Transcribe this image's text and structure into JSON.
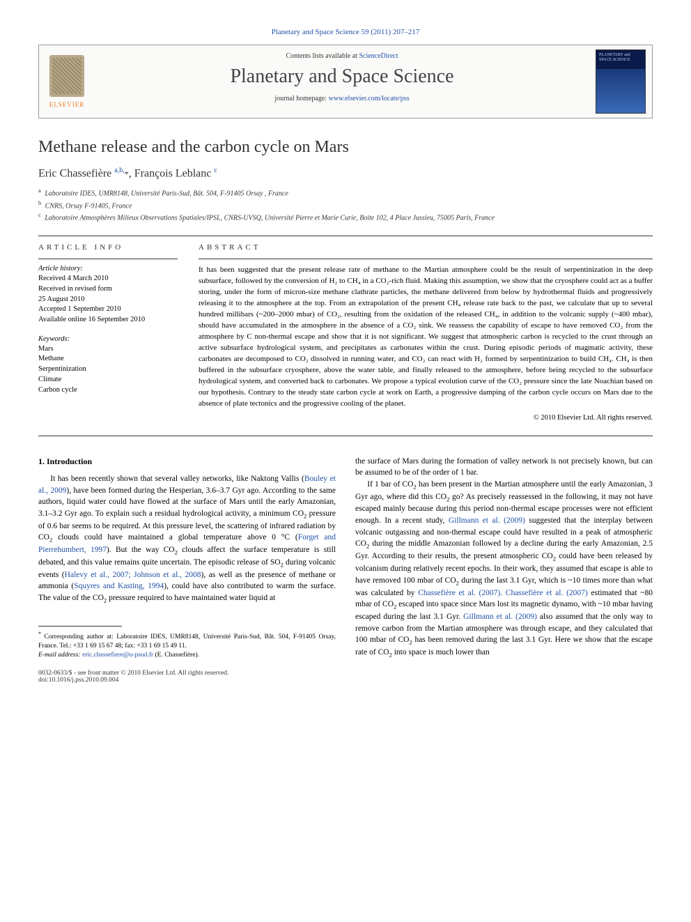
{
  "journal_ref": "Planetary and Space Science 59 (2011) 207–217",
  "header": {
    "contents_text": "Contents lists available at ",
    "contents_link": "ScienceDirect",
    "journal_title": "Planetary and Space Science",
    "homepage_text": "journal homepage: ",
    "homepage_link": "www.elsevier.com/locate/pss",
    "publisher": "ELSEVIER",
    "cover_text": "PLANETARY and SPACE SCIENCE"
  },
  "article": {
    "title": "Methane release and the carbon cycle on Mars",
    "authors_html": "Eric Chassefière <sup>a,b,</sup><span class='star'>*</span>, François Leblanc <sup>c</sup>",
    "affiliations": [
      {
        "sup": "a",
        "text": "Laboratoire IDES, UMR8148, Université Paris-Sud, Bât. 504, F-91405 Orsay , France"
      },
      {
        "sup": "b",
        "text": "CNRS, Orsay F-91405, France"
      },
      {
        "sup": "c",
        "text": "Laboratoire Atmosphères Milieux Observations Spatiales/IPSL, CNRS-UVSQ, Université Pierre et Marie Curie, Boite 102, 4 Place Jussieu, 75005 Paris, France"
      }
    ]
  },
  "info": {
    "article_info_heading": "ARTICLE INFO",
    "abstract_heading": "ABSTRACT",
    "history_label": "Article history:",
    "history": [
      "Received 4 March 2010",
      "Received in revised form",
      "25 August 2010",
      "Accepted 1 September 2010",
      "Available online 16 September 2010"
    ],
    "keywords_label": "Keywords:",
    "keywords": [
      "Mars",
      "Methane",
      "Serpentinization",
      "Climate",
      "Carbon cycle"
    ]
  },
  "abstract": "It has been suggested that the present release rate of methane to the Martian atmosphere could be the result of serpentinization in the deep subsurface, followed by the conversion of H₂ to CH₄ in a CO₂-rich fluid. Making this assumption, we show that the cryosphere could act as a buffer storing, under the form of micron-size methane clathrate particles, the methane delivered from below by hydrothermal fluids and progressively releasing it to the atmosphere at the top. From an extrapolation of the present CH₄ release rate back to the past, we calculate that up to several hundred millibars (~200–2000 mbar) of CO₂, resulting from the oxidation of the released CH₄, in addition to the volcanic supply (~400 mbar), should have accumulated in the atmosphere in the absence of a CO₂ sink. We reassess the capability of escape to have removed CO₂ from the atmosphere by C non-thermal escape and show that it is not significant. We suggest that atmospheric carbon is recycled to the crust through an active subsurface hydrological system, and precipitates as carbonates within the crust. During episodic periods of magmatic activity, these carbonates are decomposed to CO₂ dissolved in running water, and CO₂ can react with H₂ formed by serpentinization to build CH₄. CH₄ is then buffered in the subsurface cryosphere, above the water table, and finally released to the atmosphere, before being recycled to the subsurface hydrological system, and converted back to carbonates. We propose a typical evolution curve of the CO₂ pressure since the late Noachian based on our hypothesis. Contrary to the steady state carbon cycle at work on Earth, a progressive damping of the carbon cycle occurs on Mars due to the absence of plate tectonics and the progressive cooling of the planet.",
  "copyright": "© 2010 Elsevier Ltd. All rights reserved.",
  "body": {
    "section_heading": "1.  Introduction",
    "p1": "It has been recently shown that several valley networks, like Naktong Vallis (<span class='cite'>Bouley et al., 2009</span>), have been formed during the Hesperian, 3.6–3.7 Gyr ago. According to the same authors, liquid water could have flowed at the surface of Mars until the early Amazonian, 3.1–3.2 Gyr ago. To explain such a residual hydrological activity, a minimum CO<sub>2</sub> pressure of 0.6 bar seems to be required. At this pressure level, the scattering of infrared radiation by CO<sub>2</sub> clouds could have maintained a global temperature above 0 °C (<span class='cite'>Forget and Pierrehumbert, 1997</span>). But the way CO<sub>2</sub> clouds affect the surface temperature is still debated, and this value remains quite uncertain. The episodic release of SO<sub>2</sub> during volcanic events (<span class='cite'>Halevy et al., 2007; Johnson et al., 2008</span>), as well as the presence of methane or ammonia (<span class='cite'>Squyres and Kasting, 1994</span>), could have also contributed to warm the surface. The value of the CO<sub>2</sub> pressure required to have maintained water liquid at",
    "p2": "the surface of Mars during the formation of valley network is not precisely known, but can be assumed to be of the order of 1 bar.",
    "p3": "If 1 bar of CO<sub>2</sub> has been present in the Martian atmosphere until the early Amazonian, 3 Gyr ago, where did this CO<sub>2</sub> go? As precisely reassessed in the following, it may not have escaped mainly because during this period non-thermal escape processes were not efficient enough. In a recent study, <span class='cite'>Gillmann et al. (2009)</span> suggested that the interplay between volcanic outgassing and non-thermal escape could have resulted in a peak of atmospheric CO<sub>2</sub> during the middle Amazonian followed by a decline during the early Amazonian, 2.5 Gyr. According to their results, the present atmospheric CO<sub>2</sub> could have been released by volcanism during relatively recent epochs. In their work, they assumed that escape is able to have removed 100 mbar of CO<sub>2</sub> during the last 3.1 Gyr, which is ~10 times more than what was calculated by <span class='cite'>Chassefière et al. (2007)</span>. <span class='cite'>Chassefière et al. (2007)</span> estimated that ~80 mbar of CO<sub>2</sub> escaped into space since Mars lost its magnetic dynamo, with ~10 mbar having escaped during the last 3.1 Gyr. <span class='cite'>Gillmann et al. (2009)</span> also assumed that the only way to remove carbon from the Martian atmosphere was through escape, and they calculated that 100 mbar of CO<sub>2</sub> has been removed during the last 3.1 Gyr. Here we show that the escape rate of CO<sub>2</sub> into space is much lower than"
  },
  "footnote": {
    "corresponding": "Corresponding author at: Laboratoire IDES, UMR8148, Université Paris-Sud, Bât. 504, F-91405 Orsay, France. Tel.: +33 1 69 15 67 48; fax: +33 1 69 15 49 11.",
    "email_label": "E-mail address:",
    "email": "eric.chassefiere@u-psud.fr",
    "email_name": "(E. Chassefière)."
  },
  "footer": {
    "line1": "0032-0633/$ - see front matter © 2010 Elsevier Ltd. All rights reserved.",
    "line2": "doi:10.1016/j.pss.2010.09.004"
  },
  "colors": {
    "link": "#2050a8",
    "text": "#000000",
    "elsevier_orange": "#ee7722"
  }
}
